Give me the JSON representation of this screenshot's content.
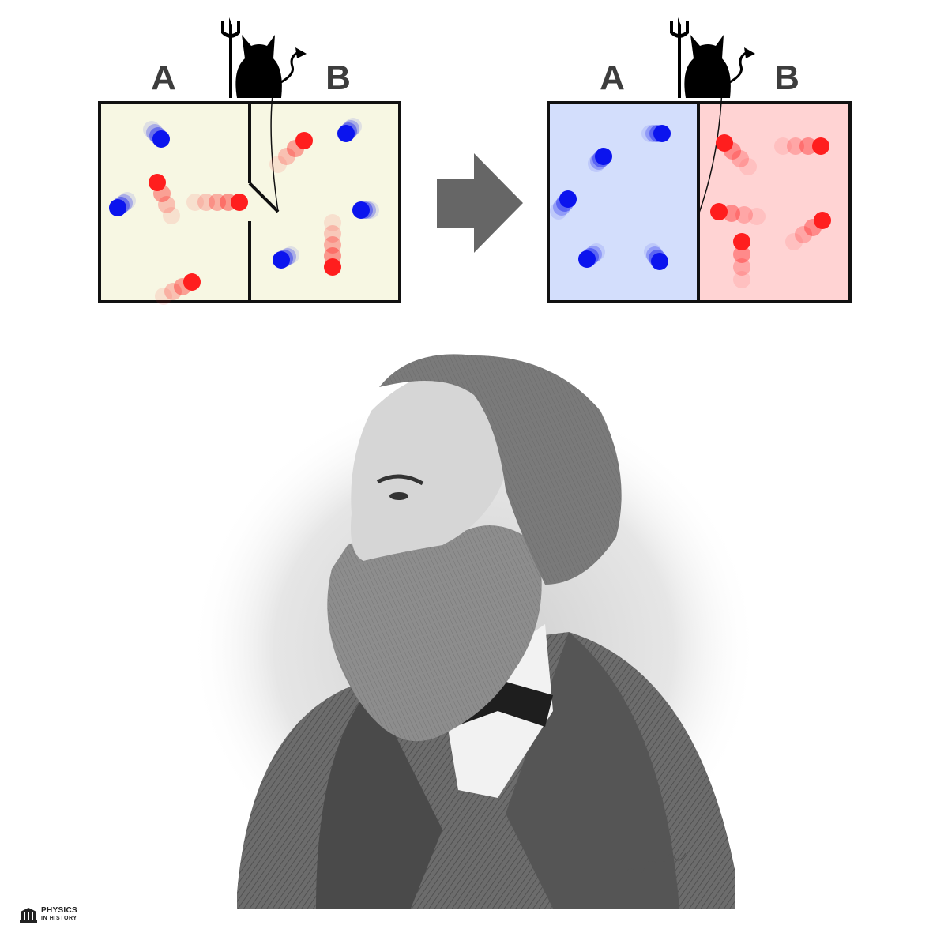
{
  "labels": {
    "left_a": "A",
    "left_b": "B",
    "right_a": "A",
    "right_b": "B"
  },
  "colors": {
    "neutral_box": "#f7f7e3",
    "cold_box": "#d3defc",
    "hot_box": "#ffd3d3",
    "fast_molecule": "#ff1e1e",
    "slow_molecule": "#0b14ee",
    "arrow": "#666666",
    "outline": "#111111"
  },
  "icons": {
    "demon": "devil-cat-with-trident-icon",
    "arrow": "right-arrow-icon",
    "portrait": "engraved-portrait-bearded-man",
    "signature": "engraver-signature",
    "logo": "museum-building-icon"
  },
  "brand": {
    "line1": "PHYSICS",
    "line2": "IN HISTORY"
  }
}
